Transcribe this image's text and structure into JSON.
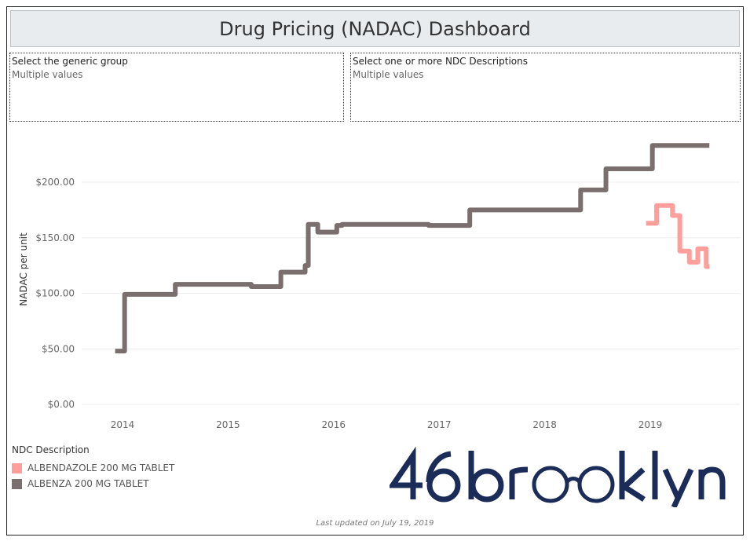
{
  "dashboard": {
    "title": "Drug Pricing (NADAC) Dashboard",
    "footer": "Last updated on July 19, 2019"
  },
  "filters": [
    {
      "label": "Select the generic group",
      "value": "Multiple values"
    },
    {
      "label": "Select one or more NDC Descriptions",
      "value": "Multiple values"
    }
  ],
  "legend": {
    "title": "NDC Description",
    "items": [
      {
        "label": "ALBENDAZOLE 200 MG TABLET",
        "color": "#ff9e9b"
      },
      {
        "label": "ALBENZA 200 MG TABLET",
        "color": "#7a6f6e"
      }
    ]
  },
  "logo": {
    "text": "46brooklyn",
    "color": "#1a2c57"
  },
  "chart_data": {
    "type": "line",
    "title": "",
    "xlabel": "",
    "ylabel": "NADAC per unit",
    "xlim": [
      2013.75,
      2019.85
    ],
    "ylim": [
      0,
      235
    ],
    "x_ticks": [
      2014,
      2015,
      2016,
      2017,
      2018,
      2019
    ],
    "x_tick_labels": [
      "2014",
      "2015",
      "2016",
      "2017",
      "2018",
      "2019"
    ],
    "y_ticks": [
      0,
      50,
      100,
      150,
      200
    ],
    "y_tick_labels": [
      "$0.00",
      "$50.00",
      "$100.00",
      "$150.00",
      "$200.00"
    ],
    "grid": "horizontal",
    "series": [
      {
        "name": "ALBENZA 200 MG TABLET",
        "color": "#7a6f6e",
        "step": true,
        "points": [
          [
            2013.93,
            48
          ],
          [
            2014.02,
            99
          ],
          [
            2014.5,
            108
          ],
          [
            2015.22,
            106
          ],
          [
            2015.5,
            119
          ],
          [
            2015.73,
            125
          ],
          [
            2015.76,
            162
          ],
          [
            2015.85,
            155
          ],
          [
            2016.03,
            161
          ],
          [
            2016.08,
            162
          ],
          [
            2016.9,
            161
          ],
          [
            2017.29,
            175
          ],
          [
            2018.13,
            175
          ],
          [
            2018.34,
            193
          ],
          [
            2018.58,
            212
          ],
          [
            2019.02,
            233
          ],
          [
            2019.56,
            233
          ]
        ]
      },
      {
        "name": "ALBENDAZOLE 200 MG TABLET",
        "color": "#ff9e9b",
        "step": true,
        "points": [
          [
            2018.96,
            163
          ],
          [
            2019.06,
            179
          ],
          [
            2019.21,
            170
          ],
          [
            2019.28,
            138
          ],
          [
            2019.37,
            128
          ],
          [
            2019.45,
            140
          ],
          [
            2019.53,
            124
          ],
          [
            2019.56,
            124
          ]
        ]
      }
    ]
  }
}
